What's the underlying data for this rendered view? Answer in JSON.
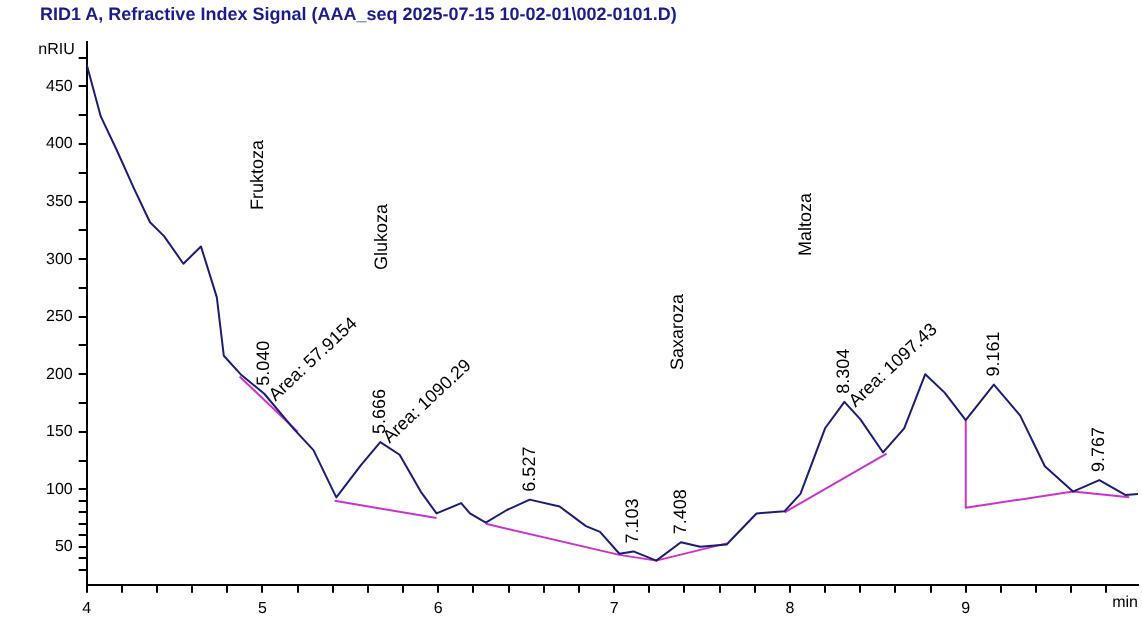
{
  "chart_data": {
    "type": "line",
    "title": "RID1 A, Refractive Index Signal (AAA_seq 2025-07-15 10-02-01\\002-0101.D)",
    "xlabel": "min",
    "ylabel": "nRIU",
    "xlim": [
      4,
      9.98
    ],
    "ylim": [
      17,
      489
    ],
    "xticks": [
      4,
      {
        "value": 4.2,
        "label": null
      },
      {
        "value": 4.4,
        "label": null
      },
      {
        "value": 4.6,
        "label": null
      },
      {
        "value": 4.8,
        "label": null
      },
      5,
      {
        "value": 5.2,
        "label": null
      },
      {
        "value": 5.4,
        "label": null
      },
      {
        "value": 5.6,
        "label": null
      },
      {
        "value": 5.8,
        "label": null
      },
      6,
      {
        "value": 6.2,
        "label": null
      },
      {
        "value": 6.4,
        "label": null
      },
      {
        "value": 6.6,
        "label": null
      },
      {
        "value": 6.8,
        "label": null
      },
      7,
      {
        "value": 7.2,
        "label": null
      },
      {
        "value": 7.4,
        "label": null
      },
      {
        "value": 7.6,
        "label": null
      },
      {
        "value": 7.8,
        "label": null
      },
      8,
      {
        "value": 8.2,
        "label": null
      },
      {
        "value": 8.4,
        "label": null
      },
      {
        "value": 8.6,
        "label": null
      },
      {
        "value": 8.8,
        "label": null
      },
      9,
      {
        "value": 9.2,
        "label": null
      },
      {
        "value": 9.4,
        "label": null
      },
      {
        "value": 9.6,
        "label": null
      },
      {
        "value": 9.8,
        "label": null
      }
    ],
    "yticks": [
      {
        "value": 30,
        "label": null
      },
      {
        "value": 40,
        "label": null
      },
      50,
      {
        "value": 60,
        "label": null
      },
      {
        "value": 70,
        "label": null
      },
      {
        "value": 80,
        "label": null
      },
      {
        "value": 90,
        "label": null
      },
      100,
      {
        "value": 125,
        "label": null
      },
      150,
      {
        "value": 175,
        "label": null
      },
      200,
      {
        "value": 225,
        "label": null
      },
      250,
      {
        "value": 275,
        "label": null
      },
      300,
      {
        "value": 325,
        "label": null
      },
      350,
      {
        "value": 375,
        "label": null
      },
      400,
      {
        "value": 425,
        "label": null
      },
      450,
      {
        "value": 475,
        "label": null
      }
    ],
    "grid": false,
    "legend": false,
    "marker": "none",
    "line_style": "solid",
    "series": [
      {
        "color": "#1c1c78",
        "x": [
          4.0,
          4.08,
          4.17,
          4.27,
          4.36,
          4.44,
          4.55,
          4.65,
          4.74,
          4.78,
          4.875,
          5.01,
          5.18,
          5.29,
          5.41,
          5.42,
          5.56,
          5.67,
          5.78,
          5.9,
          5.99,
          6.13,
          6.18,
          6.27,
          6.39,
          6.52,
          6.69,
          6.84,
          6.92,
          7.03,
          7.11,
          7.24,
          7.38,
          7.49,
          7.64,
          7.81,
          7.97,
          8.06,
          8.2,
          8.31,
          8.4,
          8.53,
          8.65,
          8.77,
          8.88,
          9.0,
          9.16,
          9.31,
          9.45,
          9.61,
          9.76,
          9.91,
          9.98
        ],
        "values": [
          469,
          424,
          395,
          361,
          332,
          320,
          296,
          311,
          267,
          216,
          200,
          183,
          152,
          134,
          96,
          93,
          121,
          141,
          130,
          98,
          79,
          88,
          79,
          71,
          82,
          91,
          85,
          68,
          63,
          44,
          46,
          38,
          54,
          50,
          52,
          79,
          81,
          96,
          153,
          176,
          161,
          132,
          153,
          200,
          184,
          160,
          191,
          164,
          120,
          98,
          108,
          95,
          96
        ]
      },
      {
        "color": "#cc33cc",
        "x": [
          4.87,
          5.2
        ],
        "values": [
          198,
          150
        ]
      },
      {
        "color": "#cc33cc",
        "x": [
          5.41,
          5.99
        ],
        "values": [
          90,
          75
        ]
      },
      {
        "color": "#cc33cc",
        "x": [
          6.27,
          7.03,
          7.24,
          7.64
        ],
        "values": [
          70,
          43,
          38,
          53
        ]
      },
      {
        "color": "#cc33cc",
        "x": [
          7.97,
          8.55
        ],
        "values": [
          80,
          131
        ]
      },
      {
        "color": "#cc33cc",
        "x": [
          9.0,
          9.0,
          9.61,
          9.93
        ],
        "values": [
          160,
          84,
          98,
          93
        ]
      }
    ],
    "annotations": [
      "Fruktoza",
      "Glukoza",
      "Saxaroza",
      "Maltoza",
      "Area: 57.9154",
      "Area: 1090.29",
      "Area: 1097.43",
      {
        "text": "5.040",
        "x": 5.01,
        "y": 183
      },
      {
        "text": "5.666",
        "x": 5.67,
        "y": 141
      },
      {
        "text": "6.527",
        "x": 6.52,
        "y": 91
      },
      {
        "text": "7.103",
        "x": 7.11,
        "y": 46
      },
      {
        "text": "7.408",
        "x": 7.38,
        "y": 54
      },
      {
        "text": "8.304",
        "x": 8.31,
        "y": 176
      },
      {
        "text": "9.161",
        "x": 9.16,
        "y": 191
      },
      {
        "text": "9.767",
        "x": 9.76,
        "y": 108
      }
    ]
  }
}
